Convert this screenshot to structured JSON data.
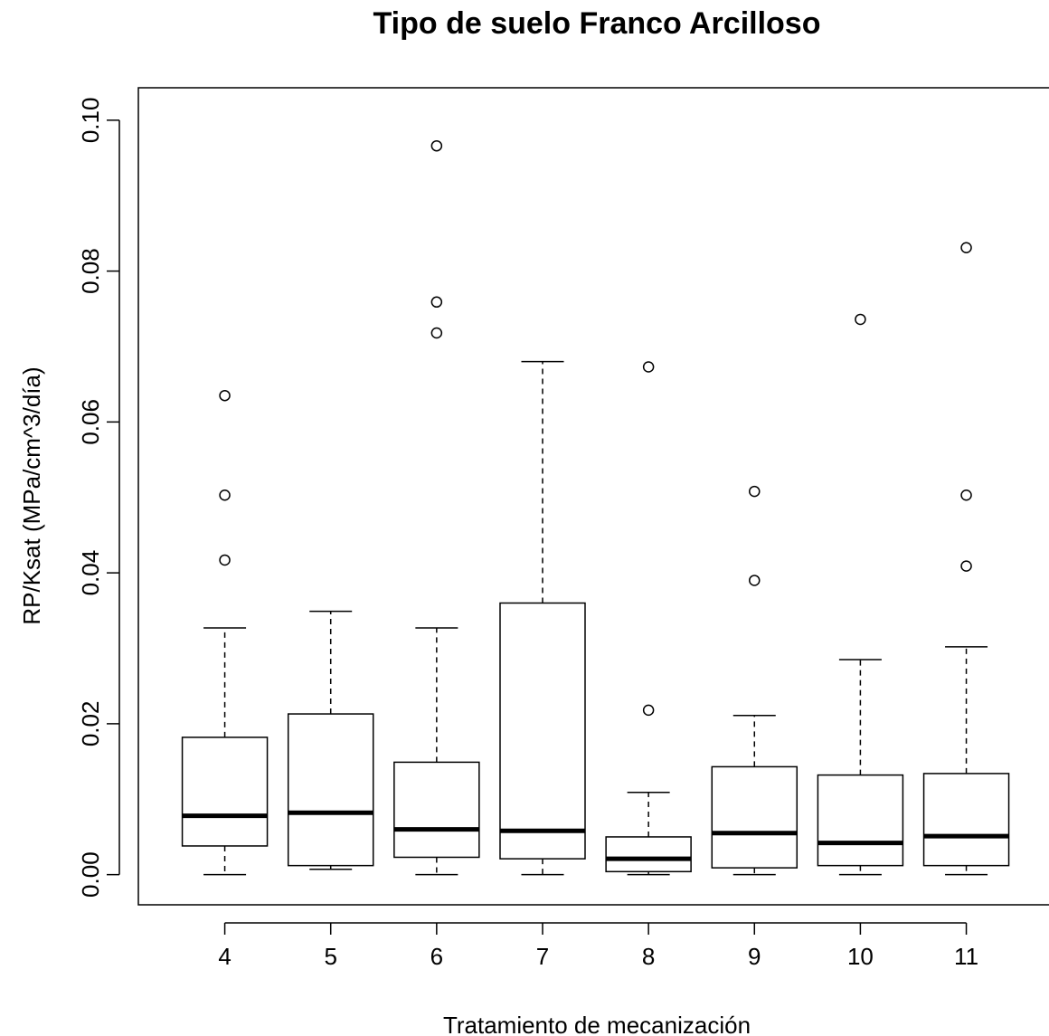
{
  "chart_data": {
    "type": "boxplot",
    "title": "Tipo de suelo Franco Arcilloso",
    "xlabel": "Tratamiento de mecanización",
    "ylabel": "RP/Ksat (MPa/cm^3/día)",
    "ylim": [
      -0.004,
      0.1043
    ],
    "yticks": [
      "0.00",
      "0.02",
      "0.04",
      "0.06",
      "0.08",
      "0.10"
    ],
    "grid": false,
    "legend": "none",
    "categories": [
      "4",
      "5",
      "6",
      "7",
      "8",
      "9",
      "10",
      "11"
    ],
    "boxes": [
      {
        "category": "4",
        "whisker_low": 0.0,
        "q1": 0.0038,
        "median": 0.0078,
        "q3": 0.0182,
        "whisker_high": 0.0327,
        "outliers": [
          0.0417,
          0.0503,
          0.0635
        ]
      },
      {
        "category": "5",
        "whisker_low": 0.0007,
        "q1": 0.0012,
        "median": 0.0082,
        "q3": 0.0213,
        "whisker_high": 0.0349,
        "outliers": []
      },
      {
        "category": "6",
        "whisker_low": 0.0,
        "q1": 0.0023,
        "median": 0.006,
        "q3": 0.0149,
        "whisker_high": 0.0327,
        "outliers": [
          0.0718,
          0.0759,
          0.0966
        ]
      },
      {
        "category": "7",
        "whisker_low": 0.0,
        "q1": 0.0021,
        "median": 0.0058,
        "q3": 0.036,
        "whisker_high": 0.068,
        "outliers": []
      },
      {
        "category": "8",
        "whisker_low": 0.0,
        "q1": 0.0004,
        "median": 0.0021,
        "q3": 0.005,
        "whisker_high": 0.0109,
        "outliers": [
          0.0218,
          0.0673
        ]
      },
      {
        "category": "9",
        "whisker_low": 0.0,
        "q1": 0.0009,
        "median": 0.0055,
        "q3": 0.0143,
        "whisker_high": 0.0211,
        "outliers": [
          0.039,
          0.0508
        ]
      },
      {
        "category": "10",
        "whisker_low": 0.0,
        "q1": 0.0012,
        "median": 0.0042,
        "q3": 0.0132,
        "whisker_high": 0.0285,
        "outliers": [
          0.0736
        ]
      },
      {
        "category": "11",
        "whisker_low": 0.0,
        "q1": 0.0012,
        "median": 0.0051,
        "q3": 0.0134,
        "whisker_high": 0.0302,
        "outliers": [
          0.0409,
          0.0503,
          0.0831
        ]
      }
    ]
  }
}
